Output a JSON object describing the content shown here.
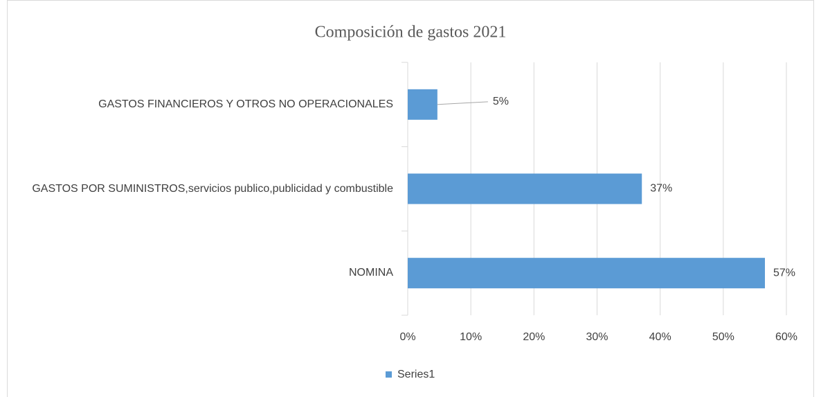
{
  "chart_data": {
    "type": "bar",
    "orientation": "horizontal",
    "title": "Composición de gastos 2021",
    "categories": [
      "GASTOS FINANCIEROS Y OTROS NO OPERACIONALES",
      "GASTOS POR SUMINISTROS,servicios publico,publicidad y combustible",
      "NOMINA"
    ],
    "series": [
      {
        "name": "Series1",
        "color": "#5b9bd5",
        "values": [
          4.7,
          37.1,
          56.6
        ],
        "value_labels": [
          "5%",
          "37%",
          "57%"
        ]
      }
    ],
    "xlim": [
      0,
      60
    ],
    "xticks": [
      {
        "value": 0,
        "label": "0%"
      },
      {
        "value": 10,
        "label": "10%"
      },
      {
        "value": 20,
        "label": "20%"
      },
      {
        "value": 30,
        "label": "30%"
      },
      {
        "value": 40,
        "label": "40%"
      },
      {
        "value": 50,
        "label": "50%"
      },
      {
        "value": 60,
        "label": "60%"
      }
    ],
    "grid": true,
    "legend": "bottom"
  }
}
